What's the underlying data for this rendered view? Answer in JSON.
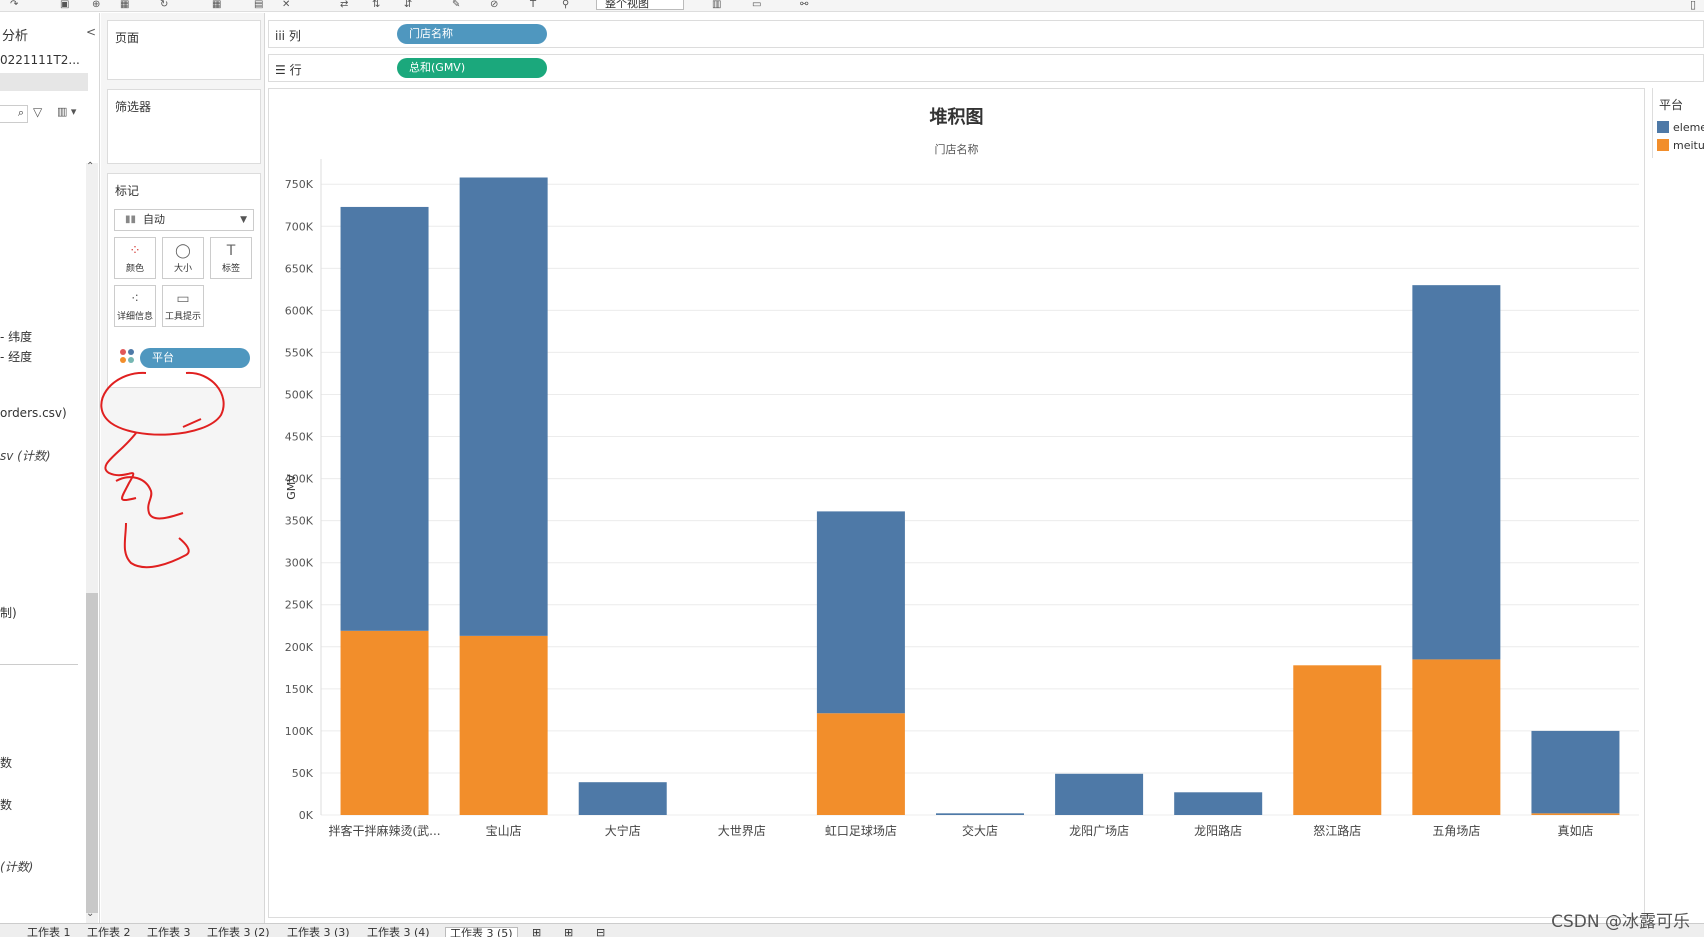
{
  "toolbar": {
    "view_dropdown": "整个视图"
  },
  "data_pane": {
    "title": "分析",
    "collapse_glyph": "<",
    "datasource": "0221111T2...",
    "search_glyph": "⌕",
    "filter_glyph": "▽",
    "view_glyph": "▥ ▾",
    "items": [
      {
        "text": "- 纬度",
        "y": 336
      },
      {
        "text": "- 经度",
        "y": 356
      },
      {
        "text": "orders.csv)",
        "y": 414
      },
      {
        "text": "sv (计数)",
        "y": 455,
        "italic": true
      },
      {
        "text": "制)",
        "y": 612
      },
      {
        "text": "数",
        "y": 762
      },
      {
        "text": "数",
        "y": 804
      },
      {
        "text": "(计数)",
        "y": 866,
        "italic": true
      }
    ]
  },
  "pages_card": {
    "title": "页面"
  },
  "filters_card": {
    "title": "筛选器"
  },
  "marks_card": {
    "title": "标记",
    "mark_type": "自动",
    "buttons": [
      {
        "name": "color",
        "label": "颜色",
        "glyph": "⁘"
      },
      {
        "name": "size",
        "label": "大小",
        "glyph": "◯"
      },
      {
        "name": "label",
        "label": "标签",
        "glyph": "T"
      },
      {
        "name": "detail",
        "label": "详细信息",
        "glyph": "⁖"
      },
      {
        "name": "tooltip",
        "label": "工具提示",
        "glyph": "▭"
      }
    ],
    "color_field": "平台"
  },
  "shelves": {
    "columns": {
      "label": "列",
      "glyph": "iii",
      "pill": "门店名称"
    },
    "rows": {
      "label": "行",
      "glyph": "☰",
      "pill": "总和(GMV)"
    }
  },
  "chart_data": {
    "type": "bar",
    "stacked": true,
    "title": "堆积图",
    "header": "门店名称",
    "ylabel": "GMV",
    "xlabel": "",
    "ylim": [
      0,
      780000
    ],
    "yticks": [
      0,
      50000,
      100000,
      150000,
      200000,
      250000,
      300000,
      350000,
      400000,
      450000,
      500000,
      550000,
      600000,
      650000,
      700000,
      750000
    ],
    "ytick_labels": [
      "0K",
      "50K",
      "100K",
      "150K",
      "200K",
      "250K",
      "300K",
      "350K",
      "400K",
      "450K",
      "500K",
      "550K",
      "600K",
      "650K",
      "700K",
      "750K"
    ],
    "grid": true,
    "categories": [
      "拌客干拌麻辣烫(武...",
      "宝山店",
      "大宁店",
      "大世界店",
      "虹口足球场店",
      "交大店",
      "龙阳广场店",
      "龙阳路店",
      "怒江路店",
      "五角场店",
      "真如店"
    ],
    "series": [
      {
        "name": "meituan",
        "color": "#f28e2b",
        "values": [
          219000,
          213000,
          0,
          0,
          121000,
          0,
          0,
          0,
          178000,
          185000,
          2000
        ]
      },
      {
        "name": "eleme",
        "color": "#4e79a7",
        "values": [
          504000,
          545000,
          39000,
          0,
          240000,
          2000,
          49000,
          27000,
          0,
          445000,
          98000
        ]
      }
    ]
  },
  "legend": {
    "title": "平台",
    "items": [
      {
        "label": "eleme",
        "color": "#4e79a7"
      },
      {
        "label": "meituan",
        "color": "#f28e2b"
      }
    ]
  },
  "sheet_tabs": [
    "工作表 1",
    "工作表 2",
    "工作表 3",
    "工作表 3 (2)",
    "工作表 3 (3)",
    "工作表 3 (4)",
    "工作表 3 (5)"
  ],
  "active_tab_index": 6,
  "watermark": "CSDN @冰露可乐"
}
